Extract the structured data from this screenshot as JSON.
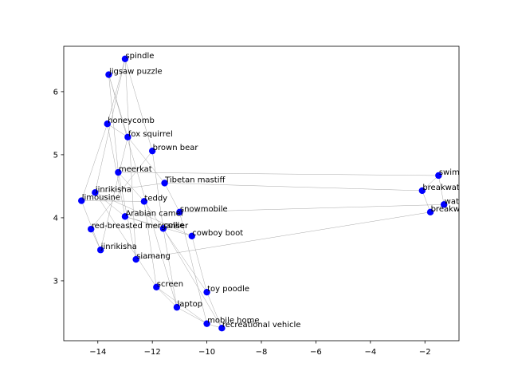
{
  "chart_data": {
    "type": "scatter",
    "title": "",
    "xlabel": "",
    "ylabel": "",
    "xlim": [
      -15.25,
      -0.75
    ],
    "ylim": [
      2.05,
      6.72
    ],
    "xticks": [
      -14,
      -12,
      -10,
      -8,
      -6,
      -4,
      -2
    ],
    "yticks": [
      3,
      4,
      5,
      6
    ],
    "grid": false,
    "marker_color": "#0000ff",
    "edge_color": "#a8a8a8",
    "points": [
      {
        "label": "spindle",
        "x": -13.0,
        "y": 6.52
      },
      {
        "label": "jigsaw puzzle",
        "x": -13.6,
        "y": 6.27
      },
      {
        "label": "honeycomb",
        "x": -13.65,
        "y": 5.49
      },
      {
        "label": "fox squirrel",
        "x": -12.9,
        "y": 5.28
      },
      {
        "label": "brown bear",
        "x": -12.0,
        "y": 5.06
      },
      {
        "label": "meerkat",
        "x": -13.25,
        "y": 4.72
      },
      {
        "label": "Tibetan mastiff",
        "x": -11.55,
        "y": 4.55
      },
      {
        "label": "jinrikisha",
        "x": -14.1,
        "y": 4.4
      },
      {
        "label": "limousine",
        "x": -14.6,
        "y": 4.27
      },
      {
        "label": "teddy",
        "x": -12.3,
        "y": 4.26
      },
      {
        "label": "snowmobile",
        "x": -11.0,
        "y": 4.09
      },
      {
        "label": "Arabian camel",
        "x": -13.0,
        "y": 4.02
      },
      {
        "label": "red-breasted merganser",
        "x": -14.25,
        "y": 3.82
      },
      {
        "label": "collie",
        "x": -11.6,
        "y": 3.83
      },
      {
        "label": "cowboy boot",
        "x": -10.55,
        "y": 3.71
      },
      {
        "label": "jinrikisha",
        "x": -13.9,
        "y": 3.49
      },
      {
        "label": "siamang",
        "x": -12.6,
        "y": 3.34
      },
      {
        "label": "screen",
        "x": -11.85,
        "y": 2.9
      },
      {
        "label": "toy poodle",
        "x": -10.0,
        "y": 2.82
      },
      {
        "label": "laptop",
        "x": -11.1,
        "y": 2.58
      },
      {
        "label": "mobile home",
        "x": -10.0,
        "y": 2.32
      },
      {
        "label": "recreational vehicle",
        "x": -9.45,
        "y": 2.25
      },
      {
        "label": "swimming trunks",
        "x": -1.5,
        "y": 4.67
      },
      {
        "label": "breakwater",
        "x": -2.1,
        "y": 4.43
      },
      {
        "label": "water tower",
        "x": -1.3,
        "y": 4.21
      },
      {
        "label": "breakwater",
        "x": -1.8,
        "y": 4.09
      }
    ],
    "edges": [
      [
        0,
        2
      ],
      [
        0,
        4
      ],
      [
        0,
        7
      ],
      [
        0,
        16
      ],
      [
        1,
        3
      ],
      [
        1,
        5
      ],
      [
        1,
        19
      ],
      [
        2,
        3
      ],
      [
        2,
        8
      ],
      [
        2,
        11
      ],
      [
        3,
        6
      ],
      [
        3,
        15
      ],
      [
        4,
        12
      ],
      [
        4,
        13
      ],
      [
        5,
        22
      ],
      [
        5,
        9
      ],
      [
        5,
        16
      ],
      [
        6,
        23
      ],
      [
        6,
        10
      ],
      [
        6,
        7
      ],
      [
        7,
        14
      ],
      [
        7,
        11
      ],
      [
        7,
        17
      ],
      [
        8,
        15
      ],
      [
        8,
        9
      ],
      [
        9,
        17
      ],
      [
        9,
        18
      ],
      [
        10,
        24
      ],
      [
        10,
        20
      ],
      [
        11,
        13
      ],
      [
        11,
        14
      ],
      [
        12,
        15
      ],
      [
        13,
        19
      ],
      [
        13,
        21
      ],
      [
        14,
        18
      ],
      [
        16,
        25
      ],
      [
        17,
        20
      ],
      [
        17,
        19
      ],
      [
        18,
        21
      ],
      [
        19,
        20
      ],
      [
        20,
        21
      ],
      [
        22,
        23
      ],
      [
        22,
        24
      ],
      [
        23,
        25
      ],
      [
        24,
        25
      ]
    ]
  }
}
